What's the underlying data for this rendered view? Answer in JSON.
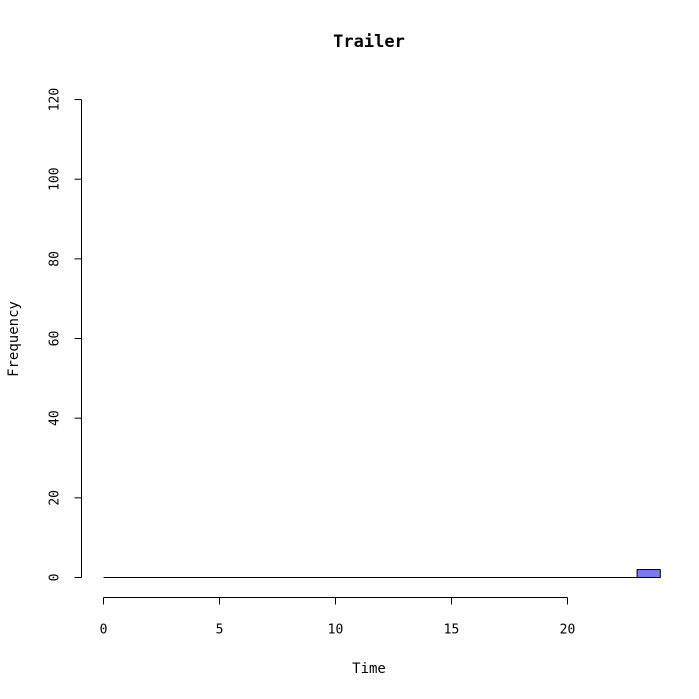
{
  "chart_data": {
    "type": "bar",
    "title": "Trailer",
    "xlabel": "Time",
    "ylabel": "Frequency",
    "xlim": [
      0,
      24
    ],
    "ylim": [
      0,
      120
    ],
    "xticks": [
      0,
      5,
      10,
      15,
      20
    ],
    "yticks": [
      0,
      20,
      40,
      60,
      80,
      100,
      120
    ],
    "bins": [
      {
        "start": 0,
        "end": 23,
        "count": 0
      },
      {
        "start": 23,
        "end": 24,
        "count": 2
      }
    ],
    "bar_color": "#7b7bef",
    "grid": false
  }
}
